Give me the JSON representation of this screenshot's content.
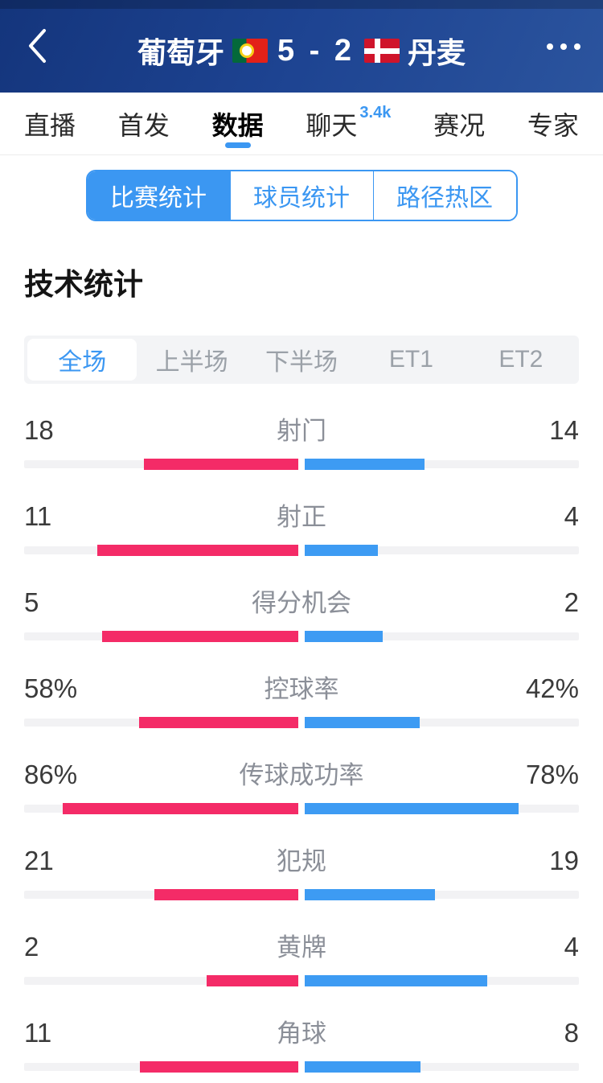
{
  "header": {
    "home_team": "葡萄牙",
    "away_team": "丹麦",
    "score": "5 - 2"
  },
  "nav_tabs": [
    {
      "label": "直播",
      "selected": false,
      "badge": ""
    },
    {
      "label": "首发",
      "selected": false,
      "badge": ""
    },
    {
      "label": "数据",
      "selected": true,
      "badge": ""
    },
    {
      "label": "聊天",
      "selected": false,
      "badge": "3.4k"
    },
    {
      "label": "赛况",
      "selected": false,
      "badge": ""
    },
    {
      "label": "专家",
      "selected": false,
      "badge": ""
    }
  ],
  "stat_tabs": [
    {
      "label": "比赛统计",
      "selected": true
    },
    {
      "label": "球员统计",
      "selected": false
    },
    {
      "label": "路径热区",
      "selected": false
    }
  ],
  "section_title": "技术统计",
  "period_tabs": [
    {
      "label": "全场",
      "selected": true
    },
    {
      "label": "上半场",
      "selected": false
    },
    {
      "label": "下半场",
      "selected": false
    },
    {
      "label": "ET1",
      "selected": false
    },
    {
      "label": "ET2",
      "selected": false
    }
  ],
  "accent_color": "#3b97f2",
  "chart_data": {
    "type": "bar",
    "subtype": "bidirectional-team-comparison",
    "title": "技术统计",
    "legend": [
      "葡萄牙",
      "丹麦"
    ],
    "home_color": "#f42b67",
    "away_color": "#3d9bf3",
    "track_color": "#f2f2f4",
    "categories": [
      "射门",
      "射正",
      "得分机会",
      "控球率",
      "传球成功率",
      "犯规",
      "黄牌",
      "角球"
    ],
    "series": [
      {
        "name": "葡萄牙",
        "values": [
          18,
          11,
          5,
          58,
          86,
          21,
          2,
          11
        ]
      },
      {
        "name": "丹麦",
        "values": [
          14,
          4,
          2,
          42,
          78,
          19,
          4,
          8
        ]
      }
    ],
    "rows": [
      {
        "label": "射门",
        "home": 18,
        "away": 14,
        "percent": false
      },
      {
        "label": "射正",
        "home": 11,
        "away": 4,
        "percent": false
      },
      {
        "label": "得分机会",
        "home": 5,
        "away": 2,
        "percent": false
      },
      {
        "label": "控球率",
        "home": 58,
        "away": 42,
        "percent": true
      },
      {
        "label": "传球成功率",
        "home": 86,
        "away": 78,
        "percent": true
      },
      {
        "label": "犯规",
        "home": 21,
        "away": 19,
        "percent": false
      },
      {
        "label": "黄牌",
        "home": 2,
        "away": 4,
        "percent": false
      },
      {
        "label": "角球",
        "home": 11,
        "away": 8,
        "percent": false
      }
    ]
  }
}
